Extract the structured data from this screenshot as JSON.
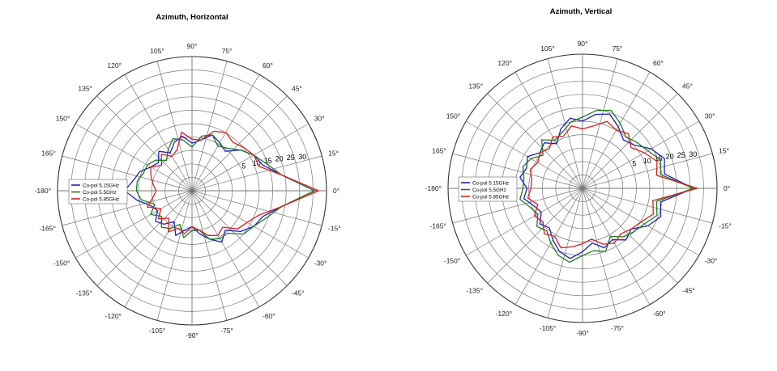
{
  "chart_data": [
    {
      "type": "polar-line",
      "title": "Azimuth,  Horizontal",
      "radial_ticks": [
        "5",
        "10",
        "15",
        "20",
        "25",
        "30"
      ],
      "r_tick_values": [
        0,
        5,
        10,
        15,
        20,
        25,
        30
      ],
      "angle_labels": [
        {
          "deg": 0,
          "label": "0°"
        },
        {
          "deg": 15,
          "label": "15°"
        },
        {
          "deg": 30,
          "label": "30°"
        },
        {
          "deg": 45,
          "label": "45°"
        },
        {
          "deg": 60,
          "label": "60°"
        },
        {
          "deg": 75,
          "label": "75°"
        },
        {
          "deg": 90,
          "label": "90°"
        },
        {
          "deg": 105,
          "label": "105°"
        },
        {
          "deg": 120,
          "label": "120°"
        },
        {
          "deg": 135,
          "label": "135°"
        },
        {
          "deg": 150,
          "label": "150°"
        },
        {
          "deg": 165,
          "label": "165°"
        },
        {
          "deg": 180,
          "label": "-180°"
        },
        {
          "deg": -165,
          "label": "-165°"
        },
        {
          "deg": -150,
          "label": "-150°"
        },
        {
          "deg": -135,
          "label": "-135°"
        },
        {
          "deg": -120,
          "label": "-120°"
        },
        {
          "deg": -105,
          "label": "-105°"
        },
        {
          "deg": -90,
          "label": "-90°"
        },
        {
          "deg": -75,
          "label": "-75°"
        },
        {
          "deg": -60,
          "label": "-60°"
        },
        {
          "deg": -45,
          "label": "-45°"
        },
        {
          "deg": -30,
          "label": "-30°"
        },
        {
          "deg": -15,
          "label": "-15°"
        }
      ],
      "legend_position": "left",
      "series": [
        {
          "name": "Co-pol 5.15GHz",
          "color": "#1f1fbf",
          "points": [
            [
              -180,
              13
            ],
            [
              -170,
              10
            ],
            [
              -160,
              7
            ],
            [
              -150,
              6
            ],
            [
              -140,
              8
            ],
            [
              -130,
              7
            ],
            [
              -120,
              5
            ],
            [
              -110,
              8
            ],
            [
              -100,
              6
            ],
            [
              -90,
              5
            ],
            [
              -80,
              7
            ],
            [
              -70,
              9
            ],
            [
              -60,
              11
            ],
            [
              -50,
              9
            ],
            [
              -40,
              12
            ],
            [
              -30,
              14
            ],
            [
              -20,
              15
            ],
            [
              -10,
              19
            ],
            [
              0,
              27
            ],
            [
              10,
              19
            ],
            [
              20,
              15
            ],
            [
              30,
              14
            ],
            [
              40,
              12
            ],
            [
              50,
              9
            ],
            [
              60,
              10
            ],
            [
              70,
              11
            ],
            [
              80,
              9
            ],
            [
              90,
              8
            ],
            [
              100,
              10
            ],
            [
              110,
              9
            ],
            [
              120,
              7
            ],
            [
              130,
              9
            ],
            [
              140,
              7
            ],
            [
              150,
              8
            ],
            [
              160,
              10
            ],
            [
              170,
              11
            ],
            [
              180,
              13
            ]
          ]
        },
        {
          "name": "Co-pol 5.5GHz",
          "color": "#1e7a1e",
          "points": [
            [
              -180,
              10
            ],
            [
              -170,
              9
            ],
            [
              -160,
              6
            ],
            [
              -150,
              8
            ],
            [
              -140,
              6
            ],
            [
              -130,
              8
            ],
            [
              -120,
              7
            ],
            [
              -110,
              5
            ],
            [
              -100,
              8
            ],
            [
              -90,
              6
            ],
            [
              -80,
              6
            ],
            [
              -70,
              9
            ],
            [
              -60,
              10
            ],
            [
              -50,
              10
            ],
            [
              -40,
              13
            ],
            [
              -30,
              14
            ],
            [
              -20,
              16
            ],
            [
              -10,
              19
            ],
            [
              0,
              27
            ],
            [
              10,
              19
            ],
            [
              20,
              16
            ],
            [
              30,
              14
            ],
            [
              40,
              12
            ],
            [
              50,
              10
            ],
            [
              60,
              9
            ],
            [
              70,
              11
            ],
            [
              80,
              10
            ],
            [
              90,
              7
            ],
            [
              100,
              9
            ],
            [
              110,
              10
            ],
            [
              120,
              8
            ],
            [
              130,
              6
            ],
            [
              140,
              8
            ],
            [
              150,
              9
            ],
            [
              160,
              9
            ],
            [
              170,
              10
            ],
            [
              180,
              10
            ]
          ]
        },
        {
          "name": "Co-pol 5.85GHz",
          "color": "#dd1f1f",
          "points": [
            [
              -180,
              5
            ],
            [
              -170,
              6
            ],
            [
              -160,
              8
            ],
            [
              -150,
              5
            ],
            [
              -140,
              7
            ],
            [
              -130,
              5
            ],
            [
              -120,
              8
            ],
            [
              -110,
              6
            ],
            [
              -100,
              7
            ],
            [
              -90,
              5
            ],
            [
              -80,
              6
            ],
            [
              -70,
              8
            ],
            [
              -60,
              9
            ],
            [
              -50,
              8
            ],
            [
              -40,
              11
            ],
            [
              -30,
              12
            ],
            [
              -20,
              14
            ],
            [
              -10,
              19
            ],
            [
              0,
              28
            ],
            [
              10,
              19
            ],
            [
              20,
              14
            ],
            [
              30,
              14
            ],
            [
              40,
              13
            ],
            [
              50,
              12
            ],
            [
              60,
              13
            ],
            [
              70,
              12
            ],
            [
              80,
              9
            ],
            [
              90,
              9
            ],
            [
              100,
              11
            ],
            [
              110,
              7
            ],
            [
              120,
              6
            ],
            [
              130,
              8
            ],
            [
              140,
              6
            ],
            [
              150,
              8
            ],
            [
              160,
              7
            ],
            [
              170,
              6
            ],
            [
              180,
              5
            ]
          ]
        }
      ]
    },
    {
      "type": "polar-line",
      "title": "Azimuth,  Vertical",
      "radial_ticks": [
        "5",
        "10",
        "15",
        "20",
        "25",
        "30"
      ],
      "r_tick_values": [
        0,
        5,
        10,
        15,
        20,
        25,
        30
      ],
      "angle_labels": [
        {
          "deg": 0,
          "label": "0°"
        },
        {
          "deg": 15,
          "label": "15°"
        },
        {
          "deg": 30,
          "label": "30°"
        },
        {
          "deg": 45,
          "label": "45°"
        },
        {
          "deg": 60,
          "label": "60°"
        },
        {
          "deg": 75,
          "label": "75°"
        },
        {
          "deg": 90,
          "label": "90°"
        },
        {
          "deg": 105,
          "label": "105°"
        },
        {
          "deg": 120,
          "label": "120°"
        },
        {
          "deg": 135,
          "label": "135°"
        },
        {
          "deg": 150,
          "label": "150°"
        },
        {
          "deg": 165,
          "label": "165°"
        },
        {
          "deg": 180,
          "label": "-180°"
        },
        {
          "deg": -165,
          "label": "-165°"
        },
        {
          "deg": -150,
          "label": "-150°"
        },
        {
          "deg": -135,
          "label": "-135°"
        },
        {
          "deg": -120,
          "label": "-120°"
        },
        {
          "deg": -105,
          "label": "-105°"
        },
        {
          "deg": -90,
          "label": "-90°"
        },
        {
          "deg": -75,
          "label": "-75°"
        },
        {
          "deg": -60,
          "label": "-60°"
        },
        {
          "deg": -45,
          "label": "-45°"
        },
        {
          "deg": -30,
          "label": "-30°"
        },
        {
          "deg": -15,
          "label": "-15°"
        }
      ],
      "legend_position": "left",
      "series": [
        {
          "name": "Co-pol 5.15GHz",
          "color": "#1f1fbf",
          "points": [
            [
              -180,
              10
            ],
            [
              -170,
              11
            ],
            [
              -160,
              9
            ],
            [
              -150,
              8
            ],
            [
              -140,
              10
            ],
            [
              -130,
              9
            ],
            [
              -120,
              11
            ],
            [
              -110,
              13
            ],
            [
              -100,
              14
            ],
            [
              -90,
              12
            ],
            [
              -80,
              10
            ],
            [
              -70,
              12
            ],
            [
              -60,
              11
            ],
            [
              -50,
              13
            ],
            [
              -40,
              12
            ],
            [
              -30,
              15
            ],
            [
              -20,
              17
            ],
            [
              -10,
              16
            ],
            [
              0,
              24
            ],
            [
              10,
              17
            ],
            [
              20,
              18
            ],
            [
              30,
              16
            ],
            [
              40,
              13
            ],
            [
              50,
              12
            ],
            [
              60,
              14
            ],
            [
              70,
              16
            ],
            [
              80,
              15
            ],
            [
              90,
              13
            ],
            [
              100,
              14
            ],
            [
              110,
              12
            ],
            [
              120,
              9
            ],
            [
              130,
              11
            ],
            [
              140,
              10
            ],
            [
              150,
              12
            ],
            [
              160,
              11
            ],
            [
              170,
              12
            ],
            [
              180,
              10
            ]
          ]
        },
        {
          "name": "Co-pol 5.5GHz",
          "color": "#1e7a1e",
          "points": [
            [
              -180,
              11
            ],
            [
              -170,
              12
            ],
            [
              -160,
              10
            ],
            [
              -150,
              9
            ],
            [
              -140,
              11
            ],
            [
              -130,
              10
            ],
            [
              -120,
              12
            ],
            [
              -110,
              14
            ],
            [
              -100,
              15
            ],
            [
              -90,
              13
            ],
            [
              -80,
              12
            ],
            [
              -70,
              13
            ],
            [
              -60,
              10
            ],
            [
              -50,
              12
            ],
            [
              -40,
              13
            ],
            [
              -30,
              14
            ],
            [
              -20,
              16
            ],
            [
              -10,
              15
            ],
            [
              0,
              24
            ],
            [
              10,
              16
            ],
            [
              20,
              17
            ],
            [
              30,
              15
            ],
            [
              40,
              14
            ],
            [
              50,
              13
            ],
            [
              60,
              15
            ],
            [
              70,
              17
            ],
            [
              80,
              16
            ],
            [
              90,
              14
            ],
            [
              100,
              13
            ],
            [
              110,
              11
            ],
            [
              120,
              10
            ],
            [
              130,
              12
            ],
            [
              140,
              9
            ],
            [
              150,
              11
            ],
            [
              160,
              12
            ],
            [
              170,
              11
            ],
            [
              180,
              11
            ]
          ]
        },
        {
          "name": "Co-pol 5.85GHz",
          "color": "#dd1f1f",
          "points": [
            [
              -180,
              9
            ],
            [
              -170,
              10
            ],
            [
              -160,
              8
            ],
            [
              -150,
              10
            ],
            [
              -140,
              9
            ],
            [
              -130,
              11
            ],
            [
              -120,
              10
            ],
            [
              -110,
              12
            ],
            [
              -100,
              11
            ],
            [
              -90,
              10
            ],
            [
              -80,
              9
            ],
            [
              -70,
              11
            ],
            [
              -60,
              12
            ],
            [
              -50,
              11
            ],
            [
              -40,
              12
            ],
            [
              -30,
              13
            ],
            [
              -20,
              15
            ],
            [
              -10,
              14
            ],
            [
              0,
              25
            ],
            [
              10,
              15
            ],
            [
              20,
              16
            ],
            [
              30,
              14
            ],
            [
              40,
              12
            ],
            [
              50,
              14
            ],
            [
              60,
              13
            ],
            [
              70,
              14
            ],
            [
              80,
              12
            ],
            [
              90,
              11
            ],
            [
              100,
              12
            ],
            [
              110,
              10
            ],
            [
              120,
              11
            ],
            [
              130,
              9
            ],
            [
              140,
              10
            ],
            [
              150,
              9
            ],
            [
              160,
              10
            ],
            [
              170,
              9
            ],
            [
              180,
              9
            ]
          ]
        }
      ]
    }
  ]
}
